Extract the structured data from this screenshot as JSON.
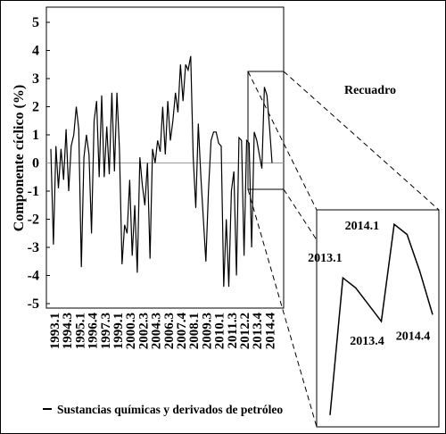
{
  "chart_data": {
    "type": "line",
    "ylabel": "Componente cíclico (%)",
    "ylim": [
      -5,
      5
    ],
    "yticks": [
      5,
      4,
      3,
      2,
      1,
      0,
      -1,
      -2,
      -3,
      -4,
      -5
    ],
    "categories": [
      "1993.1",
      null,
      null,
      null,
      null,
      null,
      "1994.3",
      null,
      "1995.1",
      null,
      null,
      null,
      null,
      null,
      null,
      "1996.4",
      null,
      null,
      "1997.3",
      null,
      null,
      null,
      null,
      null,
      "1999.1",
      null,
      null,
      null,
      null,
      null,
      "2000.3",
      null,
      null,
      null,
      null,
      null,
      null,
      null,
      "2002.3",
      null,
      null,
      null,
      null,
      null,
      null,
      null,
      "2004.3",
      null,
      null,
      null,
      null,
      null,
      null,
      null,
      "2006.3",
      null,
      null,
      null,
      null,
      "2007.4",
      "2008.1",
      null,
      null,
      null,
      null,
      null,
      "2009.3",
      null,
      "2010.1",
      null,
      null,
      null,
      null,
      null,
      "2011.3",
      null,
      null,
      "2012.2",
      null,
      null,
      null,
      null,
      null,
      "2013.4",
      null,
      null,
      null,
      "2014.4"
    ],
    "series": [
      {
        "name": "Sustancias químicas y derivados de petróleo",
        "color": "#000000",
        "values": [
          0.5,
          -2.9,
          0.6,
          -0.9,
          0.5,
          -0.6,
          1.2,
          -1.0,
          0.6,
          1.0,
          2.0,
          1.2,
          -3.7,
          0.2,
          1.0,
          0.3,
          -2.5,
          1.5,
          2.2,
          -0.5,
          2.4,
          -0.5,
          1.3,
          -0.4,
          2.5,
          -0.3,
          2.5,
          0.5,
          -3.6,
          -2.2,
          -2.5,
          -0.6,
          -3.3,
          -1.5,
          -3.9,
          0.2,
          -0.8,
          -1.5,
          0.0,
          -3.4,
          0.5,
          0.0,
          0.8,
          0.4,
          2.0,
          0.3,
          2.2,
          0.8,
          1.5,
          2.5,
          1.8,
          3.5,
          2.2,
          3.5,
          3.3,
          3.8,
          0.2,
          -1.6,
          1.4,
          -0.5,
          -2.0,
          -3.5,
          -1.0,
          0.8,
          1.1,
          1.1,
          0.7,
          0.6,
          -4.4,
          -2.0,
          -4.4,
          -1.0,
          -0.3,
          -4.0,
          0.9,
          0.8,
          -3.3,
          0.8,
          0.7,
          -3.0,
          1.1,
          0.8,
          0.3,
          -0.2,
          2.7,
          2.4,
          1.3,
          0.0
        ]
      }
    ],
    "inset": {
      "title": "Recuadro",
      "xlim": [
        79,
        87
      ],
      "ylim": [
        -3.3,
        3.0
      ],
      "labels": [
        {
          "index": 80,
          "label": "2013.1"
        },
        {
          "index": 83,
          "label": "2013.4"
        },
        {
          "index": 84,
          "label": "2014.1"
        },
        {
          "index": 87,
          "label": "2014.4"
        }
      ]
    }
  }
}
